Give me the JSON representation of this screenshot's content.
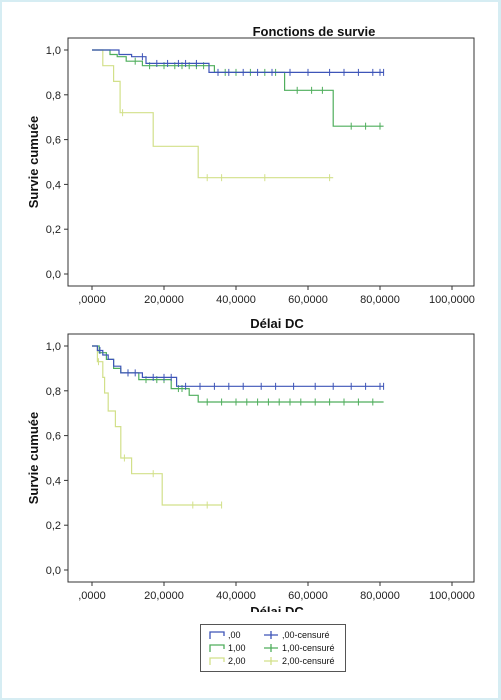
{
  "page_title": "Fonctions de survie",
  "chart_data": [
    {
      "type": "line",
      "title": "Fonctions de survie",
      "xlabel": "Délai DC",
      "ylabel": "Survie cumuée",
      "xlim": [
        0,
        100
      ],
      "ylim": [
        0,
        1
      ],
      "x_ticks": [
        ",0000",
        "20,0000",
        "40,0000",
        "60,0000",
        "80,0000",
        "100,0000"
      ],
      "y_ticks": [
        "0,0",
        "0,2",
        "0,4",
        "0,6",
        "0,8",
        "1,0"
      ],
      "series": [
        {
          "name": ",00",
          "color": "#3e55b8",
          "points": [
            [
              0,
              1.0
            ],
            [
              7.5,
              1.0
            ],
            [
              7.5,
              0.98
            ],
            [
              11,
              0.98
            ],
            [
              11,
              0.97
            ],
            [
              15,
              0.97
            ],
            [
              15,
              0.94
            ],
            [
              32.5,
              0.94
            ],
            [
              32.5,
              0.9
            ],
            [
              81,
              0.9
            ]
          ],
          "censored": [
            [
              14,
              0.97
            ],
            [
              18,
              0.94
            ],
            [
              21,
              0.94
            ],
            [
              24,
              0.94
            ],
            [
              26,
              0.94
            ],
            [
              29,
              0.94
            ],
            [
              35,
              0.9
            ],
            [
              38,
              0.9
            ],
            [
              42,
              0.9
            ],
            [
              46,
              0.9
            ],
            [
              50,
              0.9
            ],
            [
              55,
              0.9
            ],
            [
              60,
              0.9
            ],
            [
              66,
              0.9
            ],
            [
              70,
              0.9
            ],
            [
              74,
              0.9
            ],
            [
              78,
              0.9
            ],
            [
              80,
              0.9
            ],
            [
              81,
              0.9
            ]
          ]
        },
        {
          "name": "1,00",
          "color": "#4fae5c",
          "points": [
            [
              0,
              1.0
            ],
            [
              5,
              1.0
            ],
            [
              5,
              0.98
            ],
            [
              7,
              0.98
            ],
            [
              7,
              0.97
            ],
            [
              9.5,
              0.97
            ],
            [
              9.5,
              0.95
            ],
            [
              14,
              0.95
            ],
            [
              14,
              0.93
            ],
            [
              34,
              0.93
            ],
            [
              34,
              0.9
            ],
            [
              53.5,
              0.9
            ],
            [
              53.5,
              0.82
            ],
            [
              67,
              0.82
            ],
            [
              67,
              0.66
            ],
            [
              81,
              0.66
            ]
          ],
          "censored": [
            [
              12,
              0.95
            ],
            [
              16,
              0.93
            ],
            [
              20,
              0.93
            ],
            [
              23,
              0.93
            ],
            [
              25,
              0.93
            ],
            [
              27,
              0.93
            ],
            [
              29,
              0.93
            ],
            [
              31,
              0.93
            ],
            [
              37,
              0.9
            ],
            [
              40,
              0.9
            ],
            [
              44,
              0.9
            ],
            [
              48,
              0.9
            ],
            [
              51,
              0.9
            ],
            [
              57,
              0.82
            ],
            [
              61,
              0.82
            ],
            [
              64,
              0.82
            ],
            [
              72,
              0.66
            ],
            [
              76,
              0.66
            ],
            [
              80,
              0.66
            ]
          ]
        },
        {
          "name": "2,00",
          "color": "#d2e08a",
          "points": [
            [
              0,
              1.0
            ],
            [
              3,
              1.0
            ],
            [
              3,
              0.93
            ],
            [
              6,
              0.93
            ],
            [
              6,
              0.86
            ],
            [
              7.8,
              0.86
            ],
            [
              7.8,
              0.72
            ],
            [
              17,
              0.72
            ],
            [
              17,
              0.57
            ],
            [
              29.5,
              0.57
            ],
            [
              29.5,
              0.43
            ],
            [
              67,
              0.43
            ]
          ],
          "censored": [
            [
              8.5,
              0.72
            ],
            [
              32,
              0.43
            ],
            [
              36,
              0.43
            ],
            [
              48,
              0.43
            ],
            [
              66,
              0.43
            ]
          ]
        }
      ]
    },
    {
      "type": "line",
      "title": "",
      "xlabel": "Délai DC",
      "ylabel": "Survie cumuée",
      "xlim": [
        0,
        100
      ],
      "ylim": [
        0,
        1
      ],
      "x_ticks": [
        ",0000",
        "20,0000",
        "40,0000",
        "60,0000",
        "80,0000",
        "100,0000"
      ],
      "y_ticks": [
        "0,0",
        "0,2",
        "0,4",
        "0,6",
        "0,8",
        "1,0"
      ],
      "series": [
        {
          "name": ",00",
          "color": "#3e55b8",
          "points": [
            [
              0,
              1.0
            ],
            [
              1.5,
              1.0
            ],
            [
              1.5,
              0.98
            ],
            [
              3,
              0.98
            ],
            [
              3,
              0.96
            ],
            [
              4.5,
              0.96
            ],
            [
              4.5,
              0.94
            ],
            [
              6,
              0.94
            ],
            [
              6,
              0.91
            ],
            [
              8,
              0.91
            ],
            [
              8,
              0.88
            ],
            [
              14,
              0.88
            ],
            [
              14,
              0.86
            ],
            [
              23.5,
              0.86
            ],
            [
              23.5,
              0.82
            ],
            [
              81,
              0.82
            ]
          ],
          "censored": [
            [
              2.2,
              0.98
            ],
            [
              10,
              0.88
            ],
            [
              12,
              0.88
            ],
            [
              17,
              0.86
            ],
            [
              20,
              0.86
            ],
            [
              22,
              0.86
            ],
            [
              26,
              0.82
            ],
            [
              30,
              0.82
            ],
            [
              34,
              0.82
            ],
            [
              38,
              0.82
            ],
            [
              42,
              0.82
            ],
            [
              47,
              0.82
            ],
            [
              51,
              0.82
            ],
            [
              56,
              0.82
            ],
            [
              62,
              0.82
            ],
            [
              67,
              0.82
            ],
            [
              72,
              0.82
            ],
            [
              76,
              0.82
            ],
            [
              80,
              0.82
            ],
            [
              81,
              0.82
            ]
          ]
        },
        {
          "name": "1,00",
          "color": "#4fae5c",
          "points": [
            [
              0,
              1.0
            ],
            [
              2,
              1.0
            ],
            [
              2,
              0.97
            ],
            [
              4,
              0.97
            ],
            [
              4,
              0.94
            ],
            [
              6,
              0.94
            ],
            [
              6,
              0.9
            ],
            [
              8,
              0.9
            ],
            [
              8,
              0.88
            ],
            [
              13,
              0.88
            ],
            [
              13,
              0.85
            ],
            [
              22,
              0.85
            ],
            [
              22,
              0.81
            ],
            [
              27,
              0.81
            ],
            [
              27,
              0.78
            ],
            [
              29.5,
              0.78
            ],
            [
              29.5,
              0.75
            ],
            [
              81,
              0.75
            ]
          ],
          "censored": [
            [
              10,
              0.88
            ],
            [
              15,
              0.85
            ],
            [
              18,
              0.85
            ],
            [
              20,
              0.85
            ],
            [
              24,
              0.81
            ],
            [
              25,
              0.81
            ],
            [
              32,
              0.75
            ],
            [
              36,
              0.75
            ],
            [
              40,
              0.75
            ],
            [
              43,
              0.75
            ],
            [
              46,
              0.75
            ],
            [
              49,
              0.75
            ],
            [
              52,
              0.75
            ],
            [
              55,
              0.75
            ],
            [
              58,
              0.75
            ],
            [
              62,
              0.75
            ],
            [
              66,
              0.75
            ],
            [
              70,
              0.75
            ],
            [
              74,
              0.75
            ],
            [
              78,
              0.75
            ]
          ]
        },
        {
          "name": "2,00",
          "color": "#d2e08a",
          "points": [
            [
              0,
              1.0
            ],
            [
              1.5,
              1.0
            ],
            [
              1.5,
              0.93
            ],
            [
              3,
              0.93
            ],
            [
              3,
              0.86
            ],
            [
              3.5,
              0.86
            ],
            [
              3.5,
              0.79
            ],
            [
              4.5,
              0.79
            ],
            [
              4.5,
              0.71
            ],
            [
              6.5,
              0.71
            ],
            [
              6.5,
              0.64
            ],
            [
              8,
              0.64
            ],
            [
              8,
              0.5
            ],
            [
              11,
              0.5
            ],
            [
              11,
              0.43
            ],
            [
              19.5,
              0.43
            ],
            [
              19.5,
              0.29
            ],
            [
              36,
              0.29
            ]
          ],
          "censored": [
            [
              1.8,
              0.93
            ],
            [
              9,
              0.5
            ],
            [
              17,
              0.43
            ],
            [
              28,
              0.29
            ],
            [
              32,
              0.29
            ],
            [
              36,
              0.29
            ]
          ]
        }
      ]
    }
  ],
  "legend": {
    "items": [
      {
        "label": ",00",
        "color": "#3e55b8",
        "kind": "line"
      },
      {
        "label": ",00-censuré",
        "color": "#3e55b8",
        "kind": "censor"
      },
      {
        "label": "1,00",
        "color": "#4fae5c",
        "kind": "line"
      },
      {
        "label": "1,00-censuré",
        "color": "#4fae5c",
        "kind": "censor"
      },
      {
        "label": "2,00",
        "color": "#d2e08a",
        "kind": "line"
      },
      {
        "label": "2,00-censuré",
        "color": "#d2e08a",
        "kind": "censor"
      }
    ]
  }
}
